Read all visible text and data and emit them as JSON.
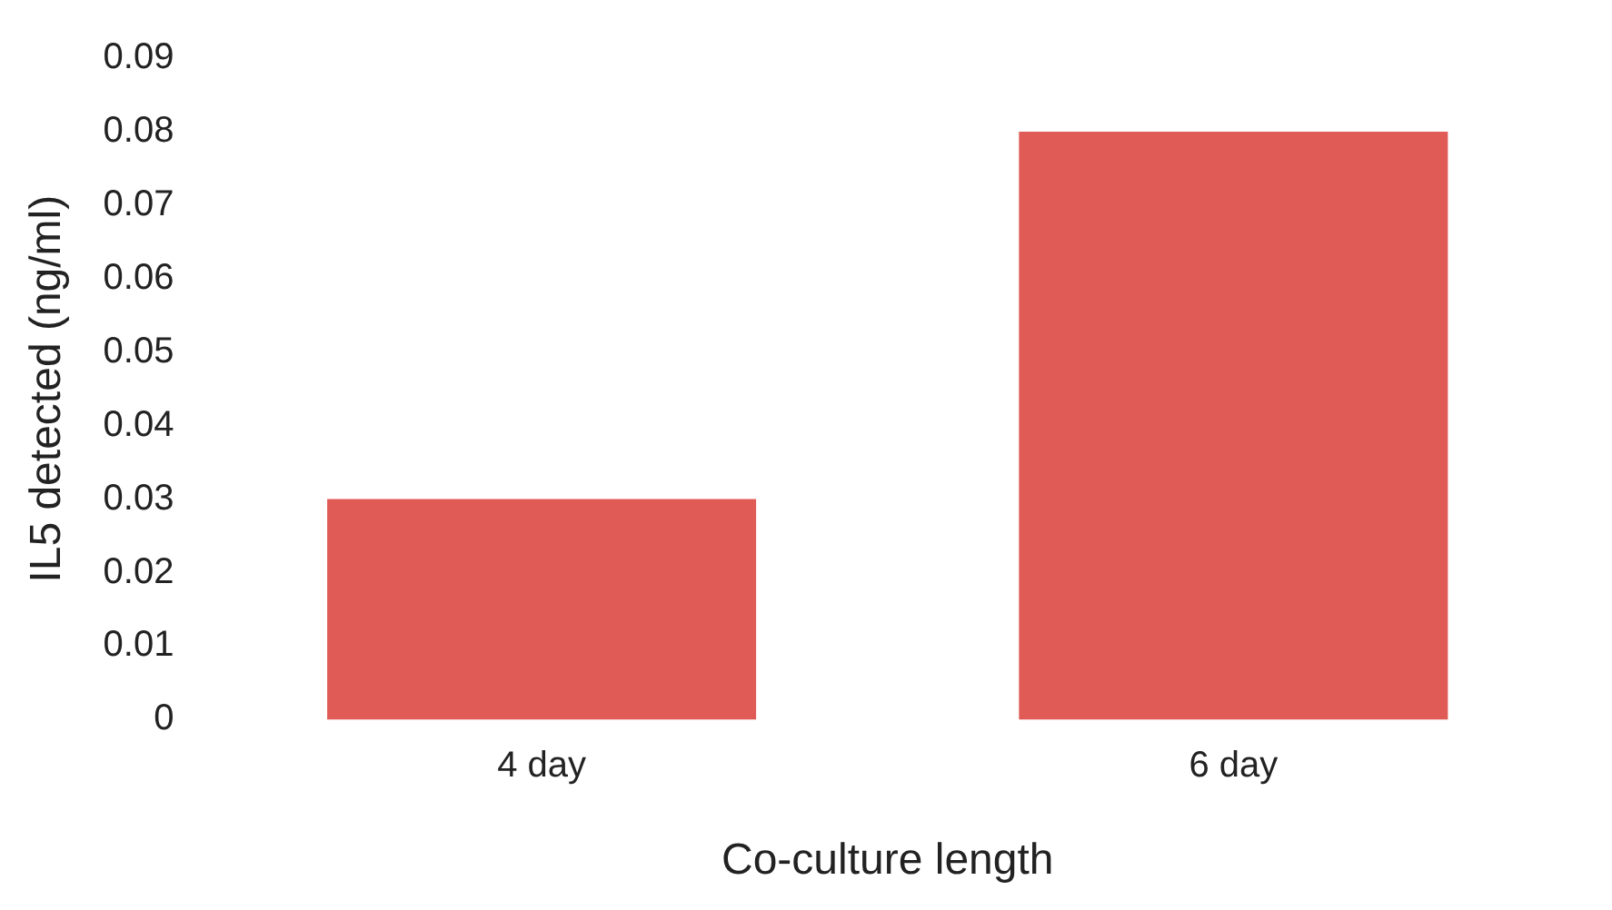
{
  "chart_data": {
    "type": "bar",
    "xlabel": "Co-culture length",
    "ylabel": "IL5 detected (ng/ml)",
    "categories": [
      "4 day",
      "6 day"
    ],
    "values": [
      0.03,
      0.08
    ],
    "color": "#e05a56",
    "ylim": [
      0,
      0.09
    ],
    "yticks": [
      0,
      0.01,
      0.02,
      0.03,
      0.04,
      0.05,
      0.06,
      0.07,
      0.08,
      0.09
    ],
    "grid": false
  }
}
